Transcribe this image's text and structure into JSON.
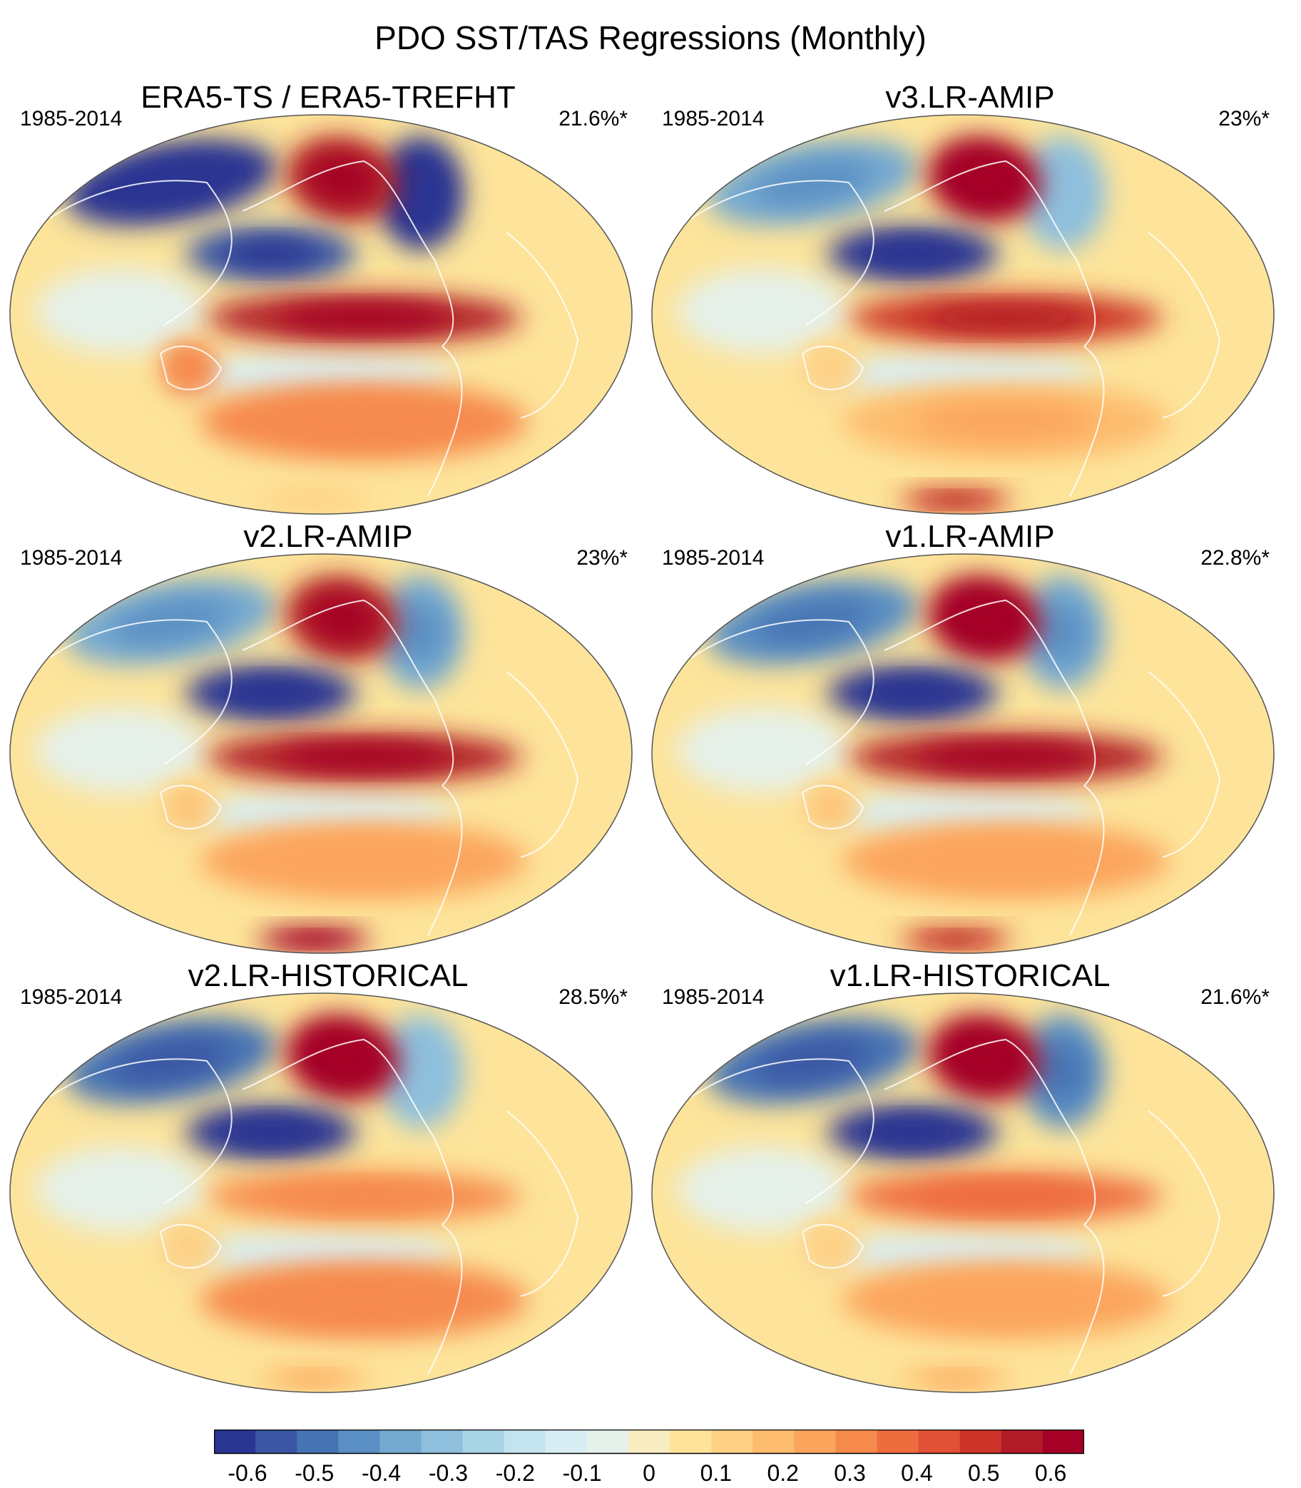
{
  "figure_title": "PDO SST/TAS Regressions (Monthly)",
  "chart_data": [
    {
      "type": "heatmap",
      "title": "ERA5-TS / ERA5-TREFHT",
      "period": "1985-2014",
      "variance": "21.6%*",
      "features": {
        "npac": -0.55,
        "alaska": 0.55,
        "epac": 0.55,
        "ncan": -0.6,
        "eurasia": -0.6,
        "spac": 0.3,
        "aus": 0.3,
        "ant": 0.1
      }
    },
    {
      "type": "heatmap",
      "title": "v3.LR-AMIP",
      "period": "1985-2014",
      "variance": "23%*",
      "features": {
        "npac": -0.6,
        "alaska": 0.62,
        "epac": 0.5,
        "ncan": -0.3,
        "eurasia": -0.4,
        "spac": 0.2,
        "aus": 0.1,
        "ant": 0.5
      }
    },
    {
      "type": "heatmap",
      "title": "v2.LR-AMIP",
      "period": "1985-2014",
      "variance": "23%*",
      "features": {
        "npac": -0.6,
        "alaska": 0.55,
        "epac": 0.55,
        "ncan": -0.4,
        "eurasia": -0.4,
        "spac": 0.25,
        "aus": 0.15,
        "ant": 0.6
      }
    },
    {
      "type": "heatmap",
      "title": "v1.LR-AMIP",
      "period": "1985-2014",
      "variance": "22.8%*",
      "features": {
        "npac": -0.6,
        "alaska": 0.6,
        "epac": 0.55,
        "ncan": -0.4,
        "eurasia": -0.45,
        "spac": 0.25,
        "aus": 0.15,
        "ant": 0.5
      }
    },
    {
      "type": "heatmap",
      "title": "v2.LR-HISTORICAL",
      "period": "1985-2014",
      "variance": "28.5%*",
      "features": {
        "npac": -0.65,
        "alaska": 0.6,
        "epac": 0.3,
        "ncan": -0.3,
        "eurasia": -0.5,
        "spac": 0.3,
        "aus": 0.1,
        "ant": 0.2
      }
    },
    {
      "type": "heatmap",
      "title": "v1.LR-HISTORICAL",
      "period": "1985-2014",
      "variance": "21.6%*",
      "features": {
        "npac": -0.65,
        "alaska": 0.65,
        "epac": 0.35,
        "ncan": -0.45,
        "eurasia": -0.5,
        "spac": 0.25,
        "aus": 0.1,
        "ant": 0.2
      }
    }
  ],
  "colorbar": {
    "ticks": [
      "-0.6",
      "-0.5",
      "-0.4",
      "-0.3",
      "-0.2",
      "-0.1",
      "0",
      "0.1",
      "0.2",
      "0.3",
      "0.4",
      "0.5",
      "0.6"
    ],
    "colors": [
      "#2b3592",
      "#3a56a4",
      "#4673b4",
      "#5a8fc3",
      "#74a9d0",
      "#8ebfdc",
      "#a9d4e6",
      "#c3e3ef",
      "#d9eef4",
      "#e5f1ea",
      "#f7edc0",
      "#fde49a",
      "#fed184",
      "#fdbc6e",
      "#fca55d",
      "#f68a4d",
      "#ee6d3f",
      "#e05136",
      "#cc3427",
      "#b11c27",
      "#a50026"
    ]
  }
}
